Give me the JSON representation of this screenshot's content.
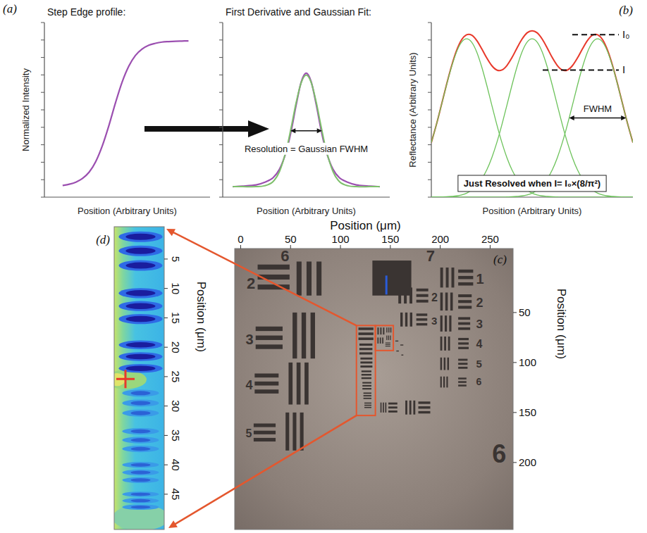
{
  "chart_data": [
    {
      "type": "line",
      "panel": "(a)",
      "title": "Step Edge profile:",
      "xlabel": "Position (Arbitrary Units)",
      "ylabel": "Normalized Intensity",
      "xlim": [
        0,
        100
      ],
      "ylim": [
        0,
        100
      ],
      "yticks": [
        0,
        10,
        20,
        30,
        40,
        50,
        60,
        70,
        80,
        90,
        100
      ],
      "tick_labels": false,
      "x": [
        11,
        15,
        19,
        23,
        27,
        31,
        35,
        39,
        43,
        47,
        51,
        55,
        59,
        63,
        67,
        71,
        75,
        79,
        83,
        87
      ],
      "series": [
        {
          "color": "#9b4fb0",
          "values": [
            6.7,
            7.4,
            8.6,
            10.7,
            14.3,
            20.4,
            29.5,
            41.2,
            54.3,
            66.1,
            75.1,
            81.2,
            84.8,
            87.0,
            88.1,
            88.8,
            89.1,
            89.3,
            89.4,
            89.5
          ]
        }
      ]
    },
    {
      "type": "line",
      "title": "First Derivative and Gaussian Fit:",
      "xlabel": "Position (Arbitrary Units)",
      "xlim": [
        0,
        100
      ],
      "ylim": [
        0,
        100
      ],
      "yticks": [
        0,
        10,
        20,
        30,
        40,
        50,
        60,
        70,
        80,
        90,
        100
      ],
      "tick_labels": false,
      "fwhm_label": "Resolution = Gaussian FWHM",
      "x": [
        6,
        12,
        20,
        25,
        30,
        34,
        38,
        41,
        44,
        47,
        50,
        53,
        56,
        59,
        62,
        66,
        70,
        75,
        80,
        88,
        94
      ],
      "series": [
        {
          "color": "#9b4fb0",
          "values": [
            6,
            6.3,
            7,
            8.5,
            11,
            16,
            26,
            38,
            53,
            66,
            71,
            66,
            53,
            38,
            26,
            16,
            11,
            8.5,
            7,
            6.3,
            6
          ]
        },
        {
          "color": "#7dbf6b",
          "values": [
            6,
            6,
            6,
            6.5,
            8.8,
            14.7,
            26.8,
            40,
            54.3,
            65.6,
            70,
            65.6,
            54.3,
            40,
            26.8,
            14.7,
            8.8,
            6.5,
            6,
            6,
            6
          ]
        }
      ]
    },
    {
      "type": "line",
      "panel": "(b)",
      "xlabel": "Position (Arbitrary Units)",
      "ylabel": "Reflectance (Arbitrary Units)",
      "xlim": [
        0,
        100
      ],
      "ylim": [
        0,
        100
      ],
      "yticks": [
        0,
        10,
        20,
        30,
        40,
        50,
        60,
        70,
        80,
        90,
        100
      ],
      "tick_labels": false,
      "fwhm_label": "FWHM",
      "criterion": "Just Resolved when I= I₀×(8/π²)",
      "reference_lines": [
        {
          "label": "I₀",
          "value": 93.0
        },
        {
          "label": "I",
          "value": 72.8
        }
      ],
      "x": [
        0,
        2.5,
        5,
        7.5,
        10,
        12.5,
        15,
        17.5,
        20,
        22.5,
        25,
        27.5,
        30,
        32.5,
        35,
        37.5,
        40,
        42.5,
        45,
        47.5,
        50,
        52.5,
        55,
        57.5,
        60,
        62.5,
        65,
        67.5,
        70,
        72.5,
        75,
        77.5,
        80,
        82.5,
        85,
        87.5,
        90,
        92.5,
        95,
        97.5,
        100
      ],
      "series": [
        {
          "color": "#e8392b",
          "values": [
            31.3,
            41.5,
            52.8,
            64.3,
            75.0,
            83.9,
            90.1,
            93.0,
            92.8,
            89.8,
            85.0,
            79.7,
            75.3,
            72.8,
            72.8,
            75.4,
            79.9,
            85.4,
            90.5,
            94.1,
            95.3,
            94.1,
            90.5,
            85.4,
            79.9,
            75.4,
            72.8,
            72.8,
            75.3,
            79.7,
            85.0,
            89.8,
            92.8,
            93.0,
            90.1,
            83.9,
            75.0,
            64.3,
            52.8,
            41.5,
            31.3
          ]
        },
        {
          "color": "#6cc25a",
          "values": [
            31.3,
            41.5,
            52.7,
            64.1,
            74.6,
            83.2,
            88.8,
            90.7,
            88.8,
            83.2,
            74.6,
            64.1,
            52.7,
            41.5,
            31.3,
            22.6,
            15.6,
            10.4,
            6.6,
            4.0,
            2.3,
            1.3,
            0.7,
            0.4,
            0.2,
            0.1,
            0,
            0,
            0,
            0,
            0,
            0,
            0,
            0,
            0,
            0,
            0,
            0,
            0,
            0,
            0
          ]
        },
        {
          "color": "#6cc25a",
          "values": [
            0,
            0,
            0.1,
            0.2,
            0.4,
            0.7,
            1.3,
            2.3,
            4.0,
            6.6,
            10.4,
            15.6,
            22.6,
            31.3,
            41.5,
            52.7,
            64.1,
            74.6,
            83.2,
            88.8,
            90.7,
            88.8,
            83.2,
            74.6,
            64.1,
            52.7,
            41.5,
            31.3,
            22.6,
            15.6,
            10.4,
            6.6,
            4.0,
            2.3,
            1.3,
            0.7,
            0.4,
            0.2,
            0.1,
            0,
            0
          ]
        },
        {
          "color": "#6cc25a",
          "values": [
            0,
            0,
            0,
            0,
            0,
            0,
            0,
            0,
            0,
            0,
            0,
            0,
            0,
            0,
            0,
            0.1,
            0.2,
            0.4,
            0.7,
            1.3,
            2.3,
            4.0,
            6.6,
            10.4,
            15.6,
            22.6,
            31.3,
            41.5,
            52.7,
            64.1,
            74.6,
            83.2,
            88.8,
            90.7,
            88.8,
            83.2,
            74.6,
            64.1,
            52.7,
            41.5,
            31.3
          ]
        }
      ]
    },
    {
      "type": "image",
      "panel": "(c)",
      "xlabel": "Position (μm)",
      "ylabel": "Position (μm)",
      "xlim": [
        -6,
        273
      ],
      "ylim": [
        -14,
        267
      ],
      "xticks": [
        0,
        50,
        100,
        150,
        200,
        250
      ],
      "yticks": [
        50,
        100,
        150,
        200
      ],
      "labels": [
        "6",
        "7",
        "2",
        "3",
        "4",
        "5",
        "2",
        "3",
        "1",
        "2",
        "3",
        "4",
        "5",
        "6",
        "6"
      ]
    },
    {
      "type": "false_color_image",
      "panel": "(d)",
      "ylabel": "Position (μm)",
      "ylim": [
        -0.5,
        51
      ],
      "yticks": [
        5,
        10,
        15,
        20,
        25,
        30,
        35,
        40,
        45
      ]
    }
  ]
}
